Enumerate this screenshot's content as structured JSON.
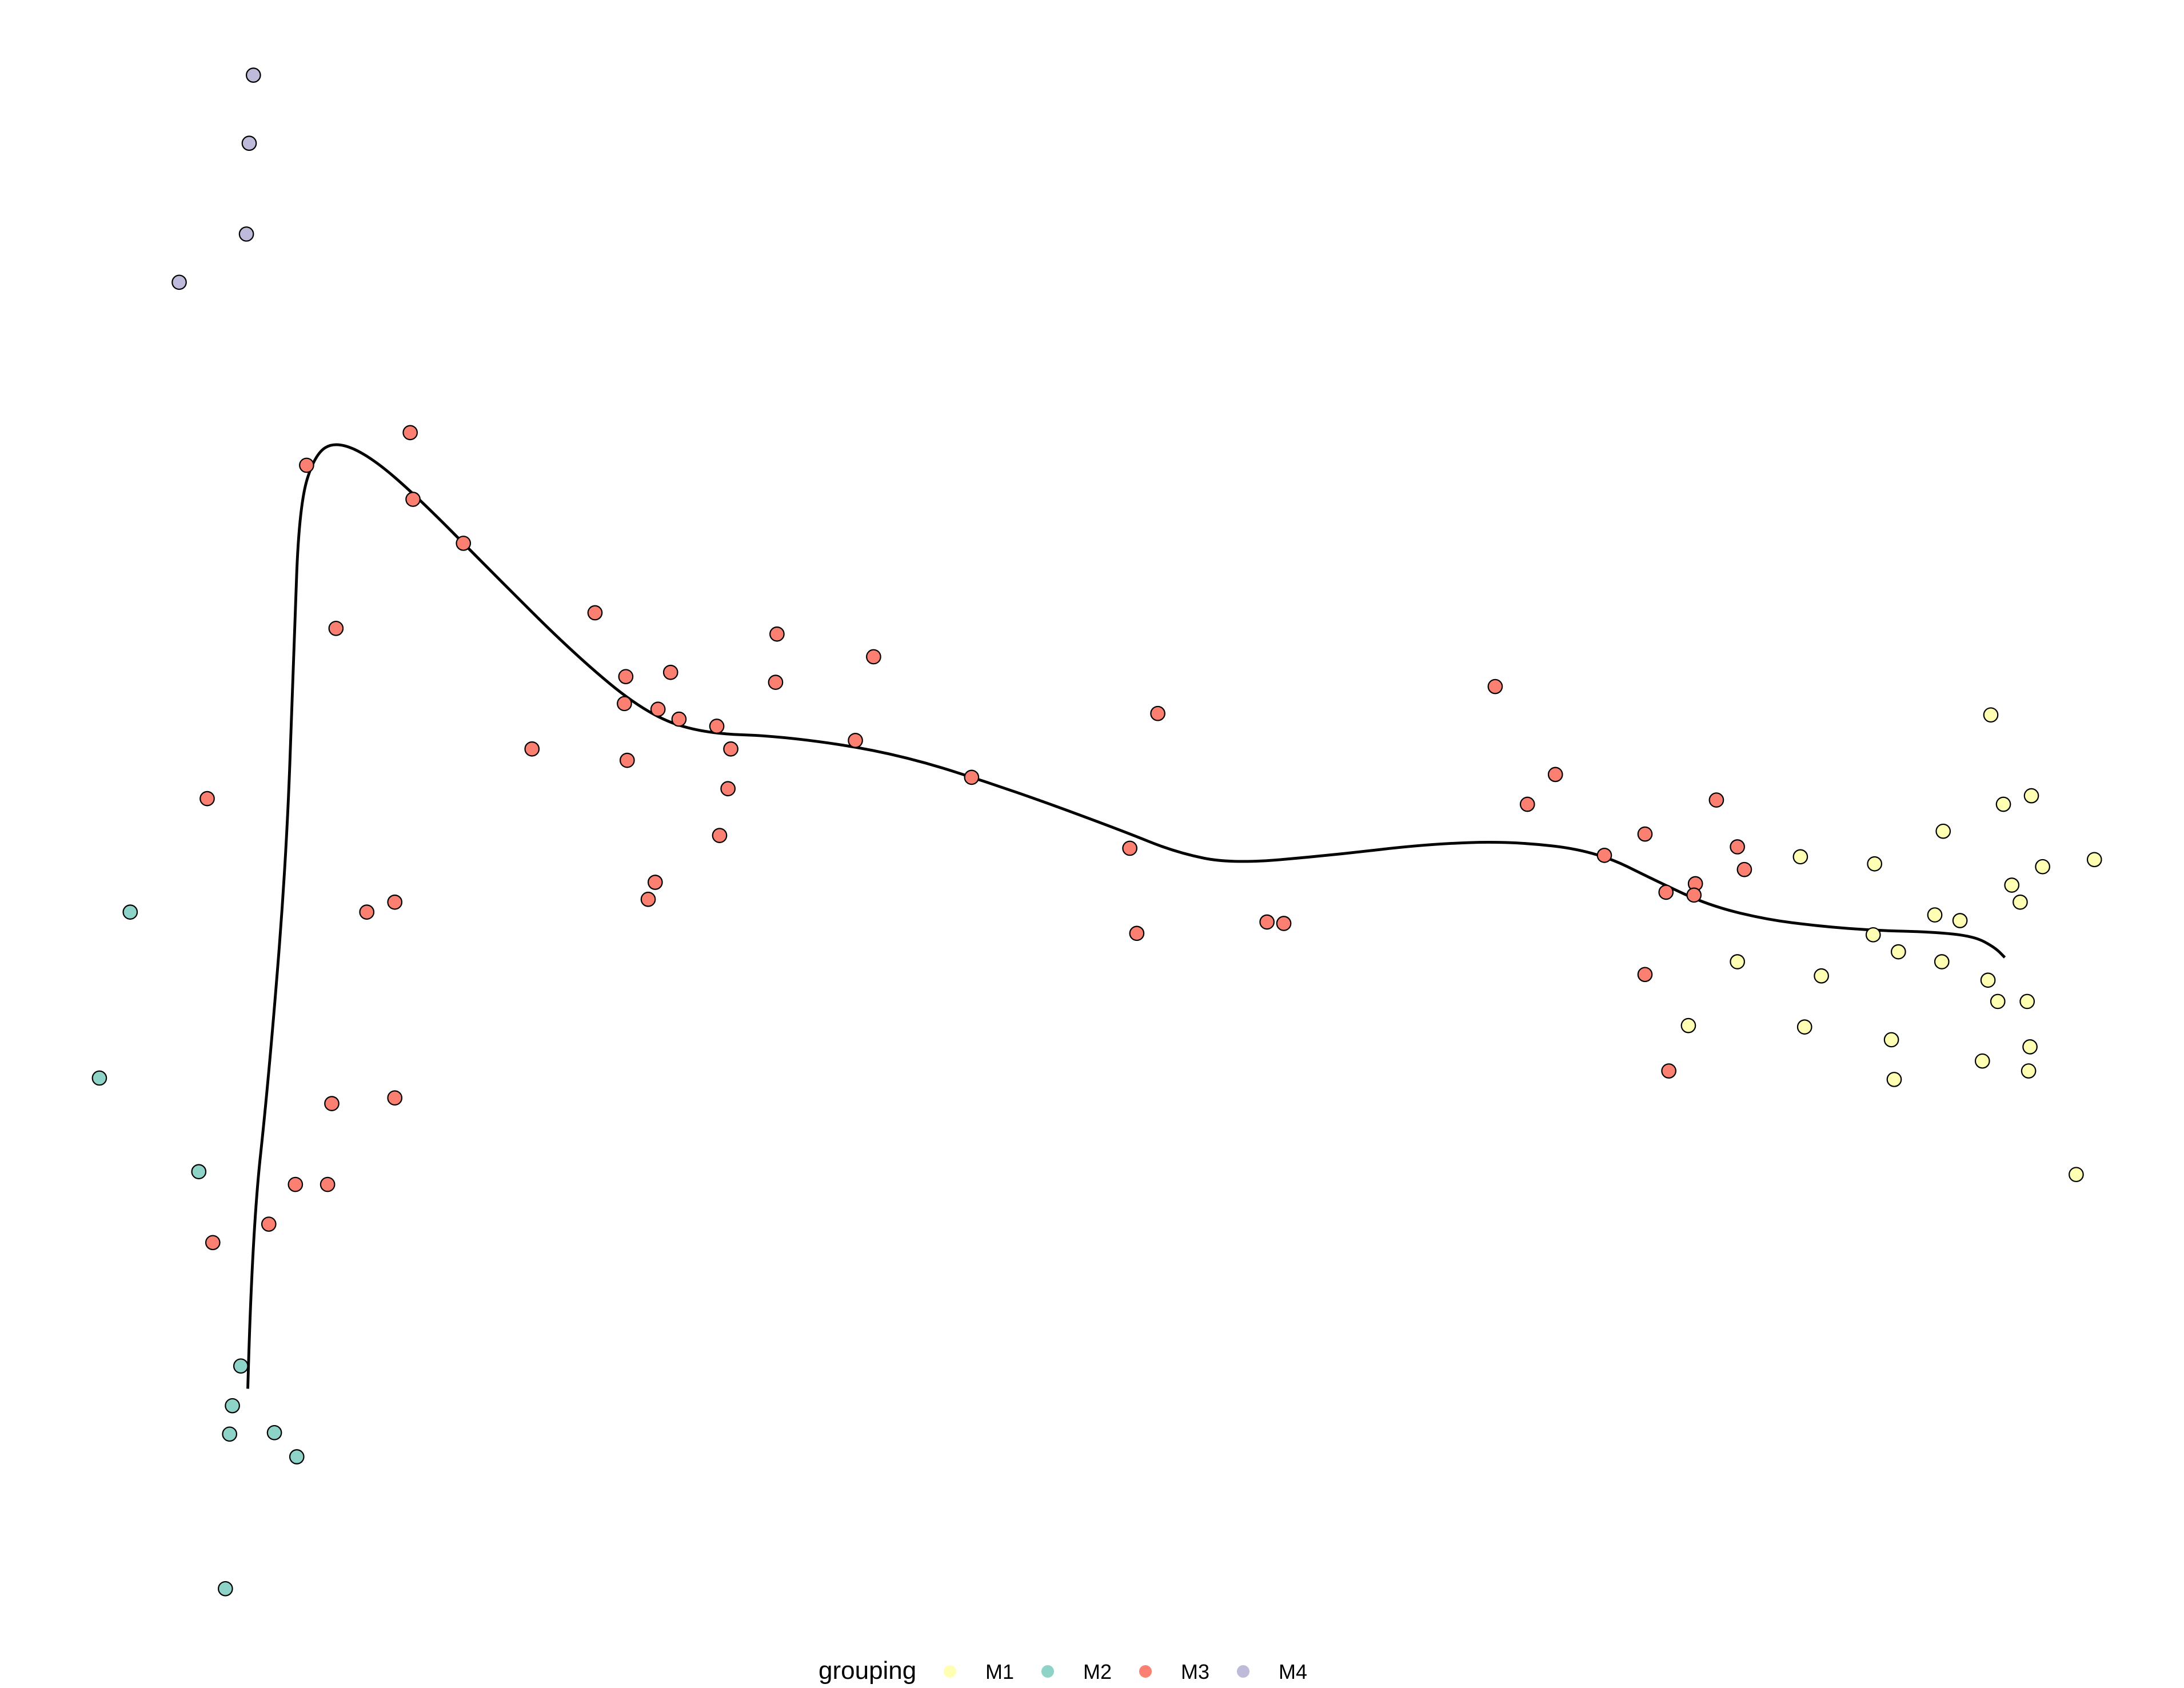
{
  "chart_data": {
    "type": "scatter",
    "title": "",
    "xlabel": "",
    "ylabel": "",
    "grid": false,
    "axes_visible": false,
    "legend_position": "bottom",
    "xlim": [
      0,
      1560
    ],
    "ylim": [
      -1190,
      0
    ],
    "legend": {
      "title": "grouping",
      "entries": [
        {
          "name": "M1",
          "color": "#FFFFB3"
        },
        {
          "name": "M2",
          "color": "#8DD3C7"
        },
        {
          "name": "M3",
          "color": "#FB8072"
        },
        {
          "name": "M4",
          "color": "#BEBADA"
        }
      ]
    },
    "series": [
      {
        "name": "M1",
        "color": "#FFFFB3",
        "points": [
          [
            1422,
            -504
          ],
          [
            1451,
            -561
          ],
          [
            1431,
            -567
          ],
          [
            1388,
            -586
          ],
          [
            1496,
            -606
          ],
          [
            1459,
            -611
          ],
          [
            1286,
            -604
          ],
          [
            1339,
            -609
          ],
          [
            1437,
            -624
          ],
          [
            1443,
            -636
          ],
          [
            1382,
            -645
          ],
          [
            1400,
            -649
          ],
          [
            1338,
            -659
          ],
          [
            1356,
            -671
          ],
          [
            1241,
            -678
          ],
          [
            1387,
            -678
          ],
          [
            1301,
            -688
          ],
          [
            1420,
            -691
          ],
          [
            1427,
            -706
          ],
          [
            1448,
            -706
          ],
          [
            1206,
            -723
          ],
          [
            1289,
            -724
          ],
          [
            1351,
            -733
          ],
          [
            1450,
            -738
          ],
          [
            1416,
            -748
          ],
          [
            1449,
            -755
          ],
          [
            1353,
            -761
          ],
          [
            1483,
            -828
          ]
        ]
      },
      {
        "name": "M2",
        "color": "#8DD3C7",
        "points": [
          [
            93,
            -643
          ],
          [
            71,
            -760
          ],
          [
            142,
            -826
          ],
          [
            172,
            -963
          ],
          [
            166,
            -991
          ],
          [
            164,
            -1011
          ],
          [
            196,
            -1010
          ],
          [
            212,
            -1027
          ],
          [
            161,
            -1120
          ]
        ]
      },
      {
        "name": "M3",
        "color": "#FB8072",
        "points": [
          [
            293,
            -305
          ],
          [
            219,
            -328
          ],
          [
            295,
            -352
          ],
          [
            331,
            -383
          ],
          [
            240,
            -443
          ],
          [
            425,
            -432
          ],
          [
            555,
            -447
          ],
          [
            624,
            -463
          ],
          [
            447,
            -477
          ],
          [
            479,
            -474
          ],
          [
            554,
            -481
          ],
          [
            1068,
            -484
          ],
          [
            446,
            -496
          ],
          [
            470,
            -500
          ],
          [
            485,
            -507
          ],
          [
            512,
            -512
          ],
          [
            827,
            -503
          ],
          [
            380,
            -528
          ],
          [
            522,
            -528
          ],
          [
            448,
            -536
          ],
          [
            611,
            -522
          ],
          [
            1111,
            -546
          ],
          [
            694,
            -548
          ],
          [
            520,
            -556
          ],
          [
            148,
            -563
          ],
          [
            1091,
            -567
          ],
          [
            1226,
            -564
          ],
          [
            514,
            -589
          ],
          [
            1175,
            -588
          ],
          [
            807,
            -598
          ],
          [
            1241,
            -597
          ],
          [
            1146,
            -603
          ],
          [
            1246,
            -613
          ],
          [
            468,
            -622
          ],
          [
            1211,
            -623
          ],
          [
            1190,
            -629
          ],
          [
            1210,
            -631
          ],
          [
            463,
            -634
          ],
          [
            282,
            -636
          ],
          [
            262,
            -643
          ],
          [
            905,
            -650
          ],
          [
            917,
            -651
          ],
          [
            812,
            -658
          ],
          [
            1175,
            -687
          ],
          [
            1192,
            -755
          ],
          [
            282,
            -774
          ],
          [
            237,
            -778
          ],
          [
            211,
            -835
          ],
          [
            234,
            -835
          ],
          [
            192,
            -863
          ],
          [
            152,
            -876
          ]
        ]
      },
      {
        "name": "M4",
        "color": "#BEBADA",
        "points": [
          [
            181,
            -53
          ],
          [
            178,
            -101
          ],
          [
            176,
            -165
          ],
          [
            128,
            -199
          ]
        ]
      }
    ],
    "trajectory_curve": [
      [
        177,
        -979
      ],
      [
        180,
        -870
      ],
      [
        192,
        -760
      ],
      [
        205,
        -600
      ],
      [
        210,
        -450
      ],
      [
        214,
        -355
      ],
      [
        225,
        -320
      ],
      [
        240,
        -311
      ],
      [
        265,
        -322
      ],
      [
        300,
        -352
      ],
      [
        350,
        -402
      ],
      [
        410,
        -461
      ],
      [
        460,
        -502
      ],
      [
        500,
        -517
      ],
      [
        560,
        -519
      ],
      [
        640,
        -531
      ],
      [
        720,
        -556
      ],
      [
        800,
        -585
      ],
      [
        840,
        -601
      ],
      [
        880,
        -609
      ],
      [
        950,
        -603
      ],
      [
        1020,
        -595
      ],
      [
        1080,
        -593
      ],
      [
        1140,
        -600
      ],
      [
        1185,
        -622
      ],
      [
        1220,
        -638
      ],
      [
        1260,
        -648
      ],
      [
        1300,
        -653
      ],
      [
        1340,
        -656
      ],
      [
        1380,
        -657
      ],
      [
        1410,
        -660
      ],
      [
        1425,
        -668
      ],
      [
        1432,
        -675
      ]
    ]
  }
}
